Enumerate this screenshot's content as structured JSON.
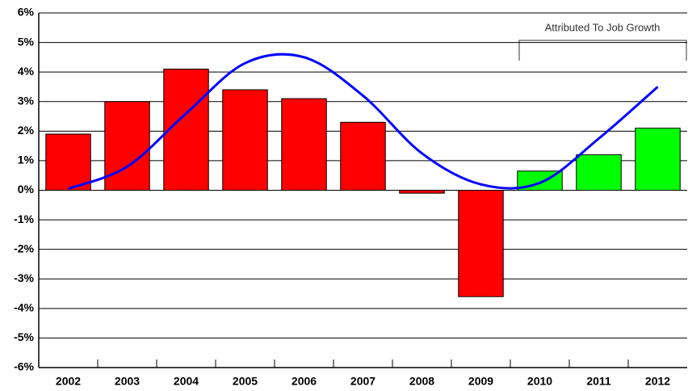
{
  "chart_data": {
    "type": "bar",
    "categories": [
      "2002",
      "2003",
      "2004",
      "2005",
      "2006",
      "2007",
      "2008",
      "2009",
      "2010",
      "2011",
      "2012"
    ],
    "values": [
      1.9,
      3.0,
      4.1,
      3.4,
      3.1,
      2.3,
      -0.1,
      -3.6,
      0.65,
      1.2,
      2.1
    ],
    "colors": [
      "#ff0000",
      "#ff0000",
      "#ff0000",
      "#ff0000",
      "#ff0000",
      "#ff0000",
      "#ff0000",
      "#ff0000",
      "#00ff00",
      "#00ff00",
      "#00ff00"
    ],
    "line": {
      "color": "#0000ff",
      "values": [
        0.05,
        0.8,
        2.6,
        4.3,
        4.5,
        3.2,
        1.25,
        0.2,
        0.25,
        1.75,
        3.5
      ]
    },
    "annotation": "Attributed To Job Growth",
    "ylim": [
      -6,
      6
    ],
    "yticks": [
      {
        "value": -6,
        "label": "-6%"
      },
      {
        "value": -5,
        "label": "-5%"
      },
      {
        "value": -4,
        "label": "-4%"
      },
      {
        "value": -3,
        "label": "-3%"
      },
      {
        "value": -2,
        "label": "-2%"
      },
      {
        "value": -1,
        "label": "-1%"
      },
      {
        "value": 0,
        "label": "0%"
      },
      {
        "value": 1,
        "label": "1%"
      },
      {
        "value": 2,
        "label": "2%"
      },
      {
        "value": 3,
        "label": "3%"
      },
      {
        "value": 4,
        "label": "4%"
      },
      {
        "value": 5,
        "label": "5%"
      },
      {
        "value": 6,
        "label": "6%"
      }
    ],
    "grid": true
  }
}
